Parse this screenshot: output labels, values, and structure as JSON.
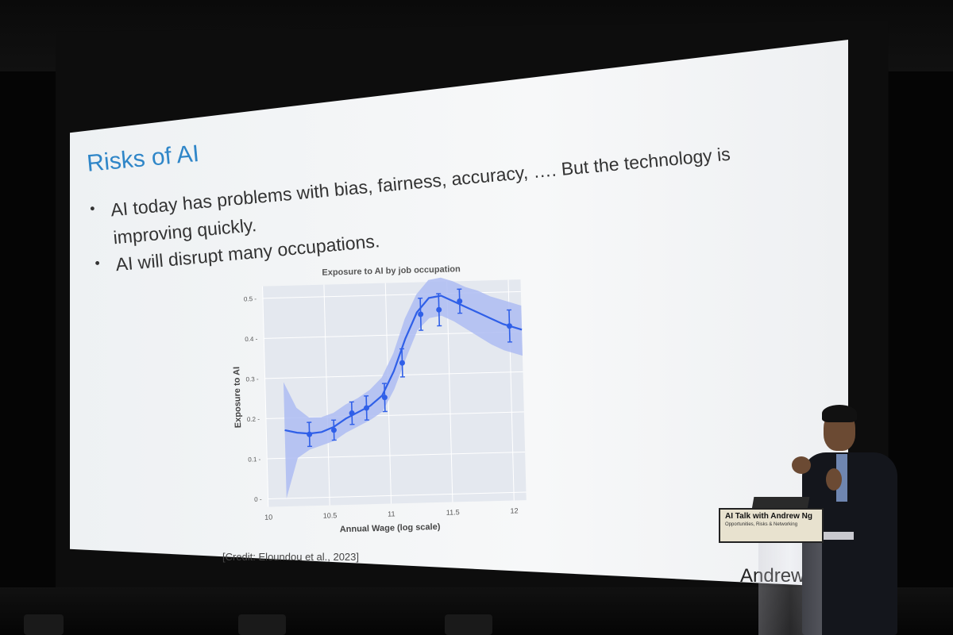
{
  "slide": {
    "title": "Risks of AI",
    "bullet1_line1": "AI today has problems with bias, fairness, accuracy, …. But the technology is",
    "bullet1_line2": "improving quickly.",
    "bullet2": "AI will disrupt many occupations.",
    "credit": "[Credit: Eloundou et al., 2023]",
    "watermark": "Andrew"
  },
  "banner": {
    "title": "AI Talk with Andrew Ng",
    "subtitle": "Opportunities, Risks & Networking"
  },
  "chart_data": {
    "type": "line",
    "title": "Exposure to AI by job occupation",
    "xlabel": "Annual Wage (log scale)",
    "ylabel": "Exposure to AI",
    "xlim": [
      10,
      12.1
    ],
    "ylim": [
      -0.02,
      0.53
    ],
    "xticks": [
      10,
      10.5,
      11,
      11.5,
      12
    ],
    "yticks": [
      0,
      0.1,
      0.2,
      0.3,
      0.4,
      0.5
    ],
    "xtick_labels": [
      "10",
      "10.5",
      "11",
      "11.5",
      "12"
    ],
    "ytick_labels": [
      "0",
      "0.1",
      "0.2",
      "0.3",
      "0.4",
      "0.5"
    ],
    "grid": true,
    "curve": {
      "x": [
        10.15,
        10.25,
        10.35,
        10.45,
        10.55,
        10.65,
        10.75,
        10.85,
        10.95,
        11.05,
        11.15,
        11.25,
        11.35,
        11.45,
        11.55,
        11.65,
        11.75,
        11.85,
        11.95,
        12.1
      ],
      "y": [
        0.17,
        0.163,
        0.16,
        0.163,
        0.175,
        0.195,
        0.21,
        0.225,
        0.25,
        0.31,
        0.39,
        0.455,
        0.49,
        0.495,
        0.48,
        0.465,
        0.45,
        0.435,
        0.42,
        0.405
      ],
      "lower": [
        0.0,
        0.1,
        0.12,
        0.13,
        0.14,
        0.16,
        0.175,
        0.19,
        0.21,
        0.265,
        0.34,
        0.41,
        0.44,
        0.445,
        0.43,
        0.41,
        0.39,
        0.37,
        0.355,
        0.34
      ],
      "upper": [
        0.29,
        0.225,
        0.2,
        0.2,
        0.21,
        0.23,
        0.245,
        0.265,
        0.295,
        0.355,
        0.44,
        0.5,
        0.535,
        0.54,
        0.53,
        0.515,
        0.505,
        0.49,
        0.48,
        0.465
      ]
    },
    "points": {
      "x": [
        10.35,
        10.55,
        10.7,
        10.82,
        10.97,
        11.12,
        11.28,
        11.43,
        11.6,
        12.0
      ],
      "y": [
        0.158,
        0.167,
        0.208,
        0.22,
        0.245,
        0.33,
        0.45,
        0.46,
        0.48,
        0.415
      ],
      "err": [
        0.03,
        0.025,
        0.028,
        0.03,
        0.035,
        0.035,
        0.04,
        0.04,
        0.03,
        0.04
      ]
    },
    "colors": {
      "line": "#2f5fe8",
      "band": "#aebcf2",
      "panel": "#e4e8ef",
      "grid": "#ffffff"
    }
  }
}
